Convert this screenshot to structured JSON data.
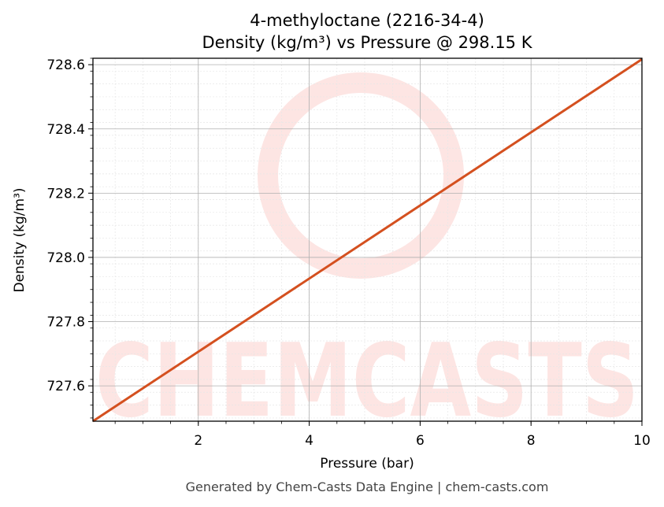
{
  "chart_data": {
    "type": "line",
    "title": "4-methyloctane (2216-34-4)",
    "subtitle": "Density (kg/m³) vs Pressure @ 298.15 K",
    "xlabel": "Pressure (bar)",
    "ylabel": "Density (kg/m³)",
    "xlim": [
      0.1,
      10
    ],
    "ylim": [
      727.49,
      728.62
    ],
    "x_ticks": [
      2,
      4,
      6,
      8,
      10
    ],
    "x_tick_labels": [
      "2",
      "4",
      "6",
      "8",
      "10"
    ],
    "y_ticks": [
      727.6,
      727.8,
      728.0,
      728.2,
      728.4,
      728.6
    ],
    "y_tick_labels": [
      "727.6",
      "727.8",
      "728.0",
      "728.2",
      "728.4",
      "728.6"
    ],
    "grid": true,
    "series": [
      {
        "x": [
          0.1,
          10
        ],
        "y": [
          727.49,
          728.617
        ],
        "color": "#d4501f"
      }
    ]
  },
  "watermark": {
    "text": "CHEMCASTS",
    "color": "#fde5e3"
  },
  "footer": "Generated by Chem-Casts Data Engine | chem-casts.com"
}
